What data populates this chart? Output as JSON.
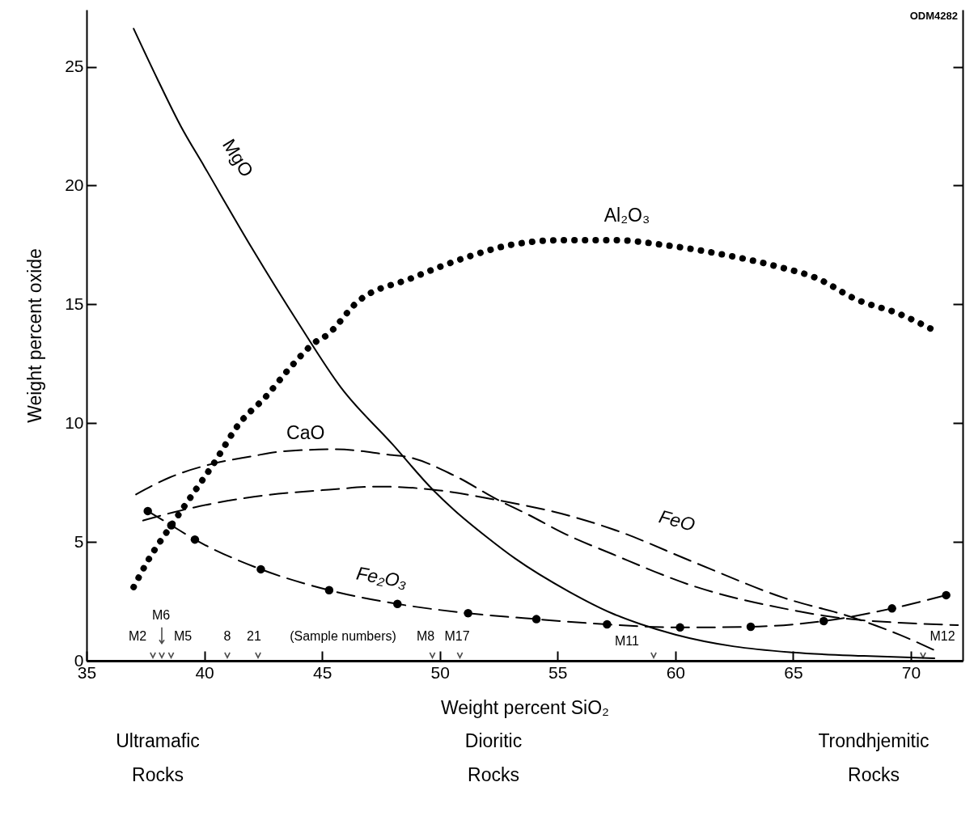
{
  "chart_data": {
    "type": "line",
    "xlabel": "Weight percent SiO₂",
    "ylabel": "Weight percent oxide",
    "xlim": [
      35,
      72.2
    ],
    "xticks": [
      35,
      40,
      45,
      50,
      55,
      60,
      65,
      70
    ],
    "ylim": [
      0,
      27.4
    ],
    "yticks": [
      0,
      5,
      10,
      15,
      20,
      25
    ],
    "grid": false,
    "series": [
      {
        "name": "MgO",
        "color": "#000000",
        "line_style": "solid",
        "marker": "none",
        "x": [
          37,
          38,
          39,
          40,
          42,
          44,
          45.8,
          48,
          49.7,
          50.6,
          52,
          53.2,
          55.5,
          57.3,
          58.5,
          60,
          62.5,
          65,
          68,
          71
        ],
        "values": [
          26.6,
          24.5,
          22.5,
          20.8,
          17.4,
          14.2,
          11.5,
          9.1,
          7.2,
          6.35,
          5.2,
          4.3,
          2.9,
          2.0,
          1.55,
          1.1,
          0.6,
          0.35,
          0.2,
          0.1
        ]
      },
      {
        "name": "Al₂O₃",
        "color": "#000000",
        "line_style": "dotted",
        "marker": "none",
        "x": [
          37.0,
          37.6,
          38.6,
          39.5,
          40.4,
          41.5,
          42.6,
          43.7,
          44.7,
          45.2,
          46.5,
          48.8,
          51.2,
          53.0,
          55.2,
          57.5,
          59.5,
          62.0,
          64.3,
          66.0,
          67.7,
          69.5,
          71.0
        ],
        "values": [
          3.1,
          4.2,
          5.7,
          7.0,
          8.3,
          10.0,
          11.1,
          12.4,
          13.4,
          13.7,
          15.1,
          16.1,
          17.0,
          17.5,
          17.7,
          17.7,
          17.5,
          17.1,
          16.6,
          16.1,
          15.2,
          14.6,
          13.9
        ]
      },
      {
        "name": "CaO",
        "color": "#000000",
        "line_style": "dashed",
        "marker": "none",
        "x": [
          37.1,
          38.5,
          40.4,
          42,
          43.2,
          45.6,
          48,
          48.5,
          50.6,
          52.5,
          53.65,
          55.4,
          57.3,
          60.9,
          64.6,
          67,
          69.5,
          72.0
        ],
        "values": [
          7.0,
          7.7,
          8.3,
          8.6,
          8.8,
          8.9,
          8.65,
          8.6,
          7.8,
          6.75,
          6.2,
          5.3,
          4.5,
          3.1,
          2.2,
          1.8,
          1.6,
          1.5
        ]
      },
      {
        "name": "FeO",
        "color": "#000000",
        "line_style": "dashed",
        "marker": "none",
        "x": [
          37.4,
          38.9,
          42.1,
          45.3,
          47.4,
          49.7,
          52.5,
          55.5,
          57.3,
          60.9,
          64.6,
          67.6,
          69.5,
          71.1
        ],
        "values": [
          5.9,
          6.3,
          6.9,
          7.2,
          7.33,
          7.2,
          6.75,
          6.1,
          5.55,
          4.1,
          2.65,
          1.8,
          1.1,
          0.4
        ]
      },
      {
        "name": "Fe₂O₃",
        "color": "#000000",
        "line_style": "dashed",
        "marker": "circle",
        "x": [
          37.6,
          38.6,
          39.6,
          42.4,
          45.3,
          48.2,
          51.2,
          54.1,
          57.1,
          60.2,
          63.2,
          66.3,
          69.2,
          71.5
        ],
        "values": [
          6.3,
          5.7,
          5.1,
          3.85,
          2.97,
          2.39,
          2.0,
          1.75,
          1.53,
          1.4,
          1.43,
          1.67,
          2.2,
          2.76
        ]
      }
    ],
    "annotations": [
      "M2",
      "M6",
      "M5",
      "8",
      "21",
      "M8",
      "M17",
      "M11",
      "M12",
      "(Sample numbers)",
      "ODM4282",
      "Ultramafic\nRocks",
      "Dioritic\nRocks",
      "Trondhjemitic\nRocks"
    ]
  }
}
